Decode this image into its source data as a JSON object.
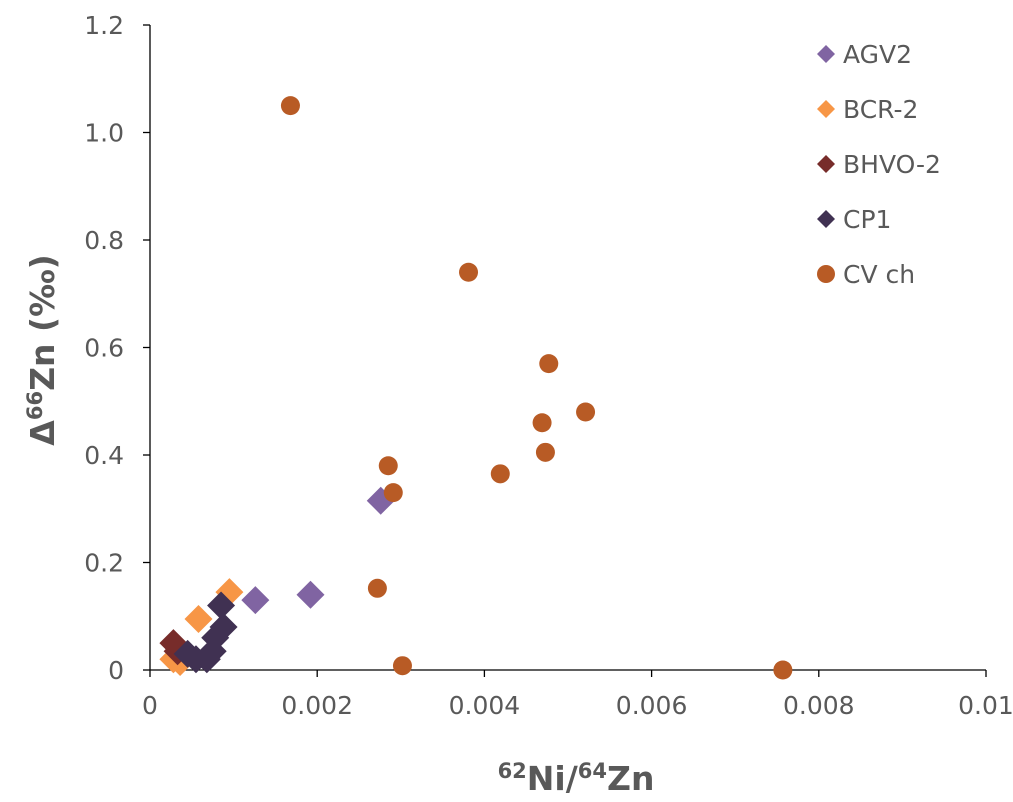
{
  "chart_data": {
    "type": "scatter",
    "xlim": [
      0,
      0.01
    ],
    "ylim": [
      0,
      1.2
    ],
    "x_ticks": [
      "0",
      "0.002",
      "0.004",
      "0.006",
      "0.008",
      "0.01"
    ],
    "y_ticks": [
      "0",
      "0.2",
      "0.4",
      "0.6",
      "0.8",
      "1.0",
      "1.2"
    ],
    "xlabel": {
      "sup1": "62",
      "base1": "Ni/",
      "sup2": "64",
      "base2": "Zn"
    },
    "ylabel": {
      "delta": "Δ",
      "sup": "66",
      "base": "Zn (‰)"
    },
    "grid": false,
    "legend_position": "top-right",
    "series": [
      {
        "name": "AGV2",
        "marker": "diamond",
        "color": "#8064a2",
        "points": [
          [
            0.00276,
            0.315
          ],
          [
            0.00126,
            0.13
          ],
          [
            0.00192,
            0.14
          ]
        ]
      },
      {
        "name": "BCR-2",
        "marker": "diamond",
        "color": "#f79646",
        "points": [
          [
            0.00028,
            0.02
          ],
          [
            0.00036,
            0.015
          ],
          [
            0.00058,
            0.095
          ],
          [
            0.00095,
            0.145
          ]
        ]
      },
      {
        "name": "BHVO-2",
        "marker": "diamond",
        "color": "#772c2a",
        "points": [
          [
            0.00028,
            0.05
          ],
          [
            0.00033,
            0.035
          ]
        ]
      },
      {
        "name": "CP1",
        "marker": "diamond",
        "color": "#403152",
        "points": [
          [
            0.00045,
            0.03
          ],
          [
            0.00055,
            0.02
          ],
          [
            0.00068,
            0.02
          ],
          [
            0.00075,
            0.035
          ],
          [
            0.00078,
            0.06
          ],
          [
            0.00088,
            0.08
          ],
          [
            0.00085,
            0.12
          ]
        ]
      },
      {
        "name": "CV ch",
        "marker": "circle",
        "color": "#b85b25",
        "points": [
          [
            0.00168,
            1.05
          ],
          [
            0.00381,
            0.74
          ],
          [
            0.00477,
            0.57
          ],
          [
            0.00521,
            0.48
          ],
          [
            0.00469,
            0.46
          ],
          [
            0.00473,
            0.405
          ],
          [
            0.00285,
            0.38
          ],
          [
            0.00419,
            0.365
          ],
          [
            0.00291,
            0.33
          ],
          [
            0.00272,
            0.152
          ],
          [
            0.00302,
            0.008
          ],
          [
            0.00757,
            0.0
          ]
        ]
      }
    ]
  }
}
